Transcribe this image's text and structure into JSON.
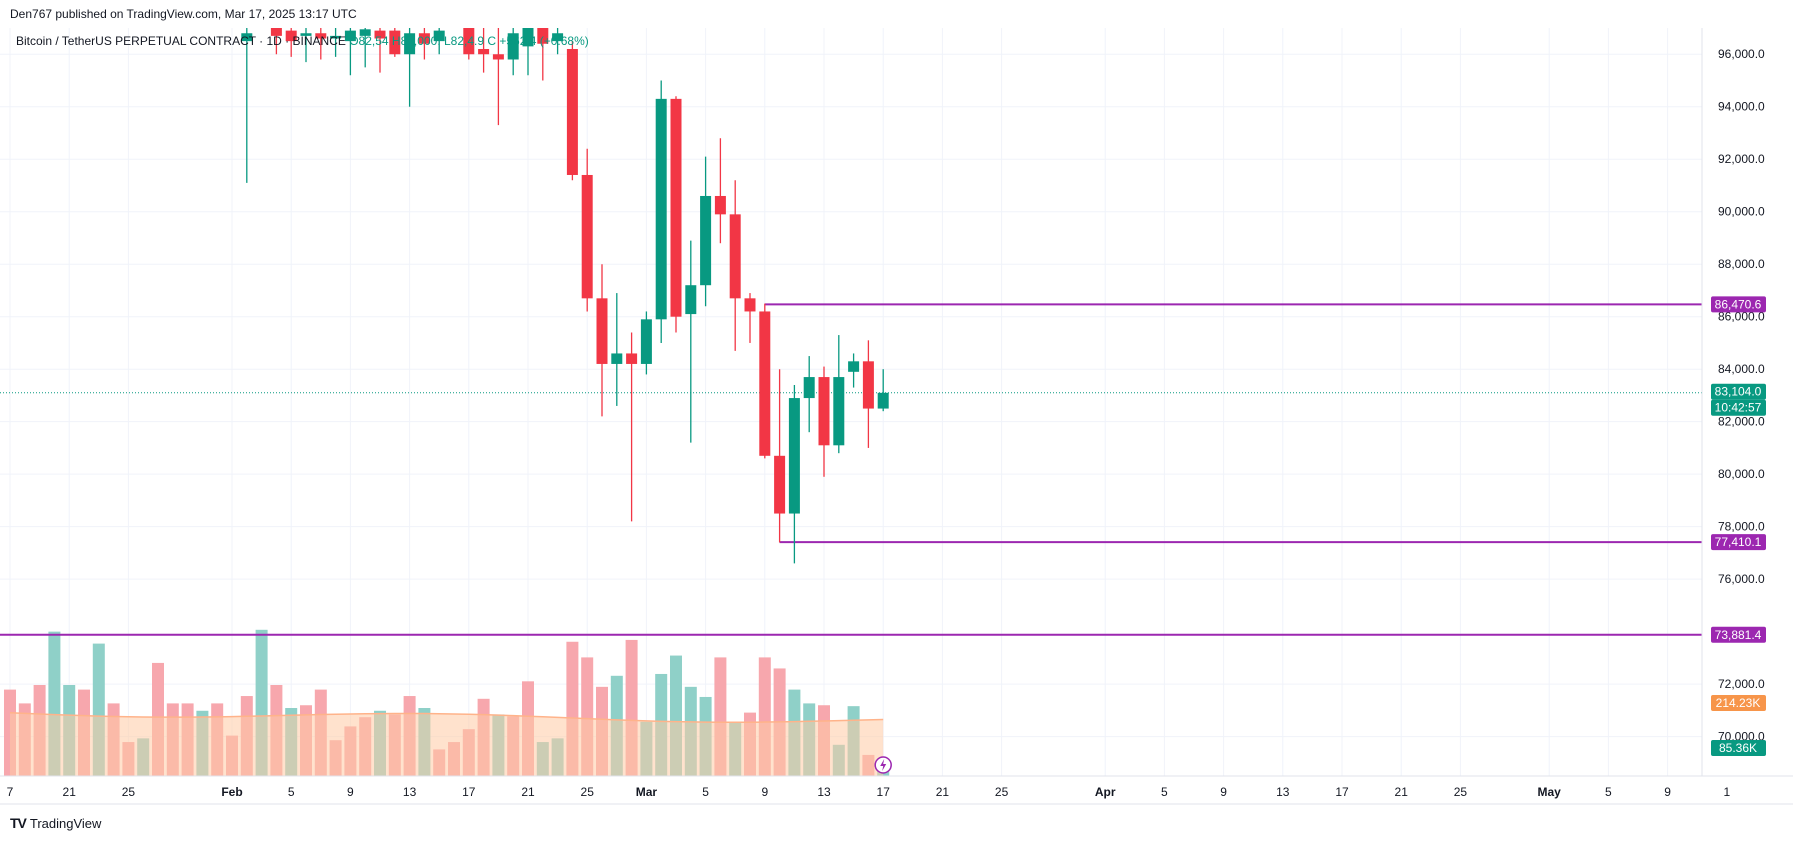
{
  "header": {
    "publish_line": "Den767 published on TradingView.com, Mar 17, 2025 13:17 UTC"
  },
  "legend": {
    "symbol": "Bitcoin / TetherUS PERPETUAL CONTRACT · 1D · BINANCE",
    "open": "O82,54",
    "high": "H84,000.",
    "low": "L82,4",
    ".9": ".9",
    "close": "C",
    "change": "+562.4 (+0.68%)"
  },
  "footer": {
    "logo": "TV",
    "brand": "TradingView"
  },
  "colors": {
    "up": "#089981",
    "down": "#f23645",
    "vol_up": "#8fd0c8",
    "vol_down": "#f7a7ad",
    "level": "#9c27b0",
    "ma_fill": "#ffcba4",
    "ma_line": "#ffb38a",
    "grid": "#f0f3fa"
  },
  "chart_data": {
    "type": "candlestick",
    "interval": "1D",
    "ylim": [
      68500,
      97000
    ],
    "y_ticks": [
      "96,000.0",
      "94,000.0",
      "92,000.0",
      "90,000.0",
      "88,000.0",
      "86,000.0",
      "84,000.0",
      "82,000.0",
      "80,000.0",
      "78,000.0",
      "76,000.0",
      "72,000.0",
      "70,000.0"
    ],
    "y_tick_values": [
      96000,
      94000,
      92000,
      90000,
      88000,
      86000,
      84000,
      82000,
      80000,
      78000,
      76000,
      72000,
      70000
    ],
    "x_ticks": [
      {
        "label": "7",
        "day": 0
      },
      {
        "label": "21",
        "day": 4
      },
      {
        "label": "25",
        "day": 8
      },
      {
        "label": "Feb",
        "day": 15,
        "bold": true
      },
      {
        "label": "5",
        "day": 19
      },
      {
        "label": "9",
        "day": 23
      },
      {
        "label": "13",
        "day": 27
      },
      {
        "label": "17",
        "day": 31
      },
      {
        "label": "21",
        "day": 35
      },
      {
        "label": "25",
        "day": 39
      },
      {
        "label": "Mar",
        "day": 43,
        "bold": true
      },
      {
        "label": "5",
        "day": 47
      },
      {
        "label": "9",
        "day": 51
      },
      {
        "label": "13",
        "day": 55
      },
      {
        "label": "17",
        "day": 59
      },
      {
        "label": "21",
        "day": 63
      },
      {
        "label": "25",
        "day": 67
      },
      {
        "label": "Apr",
        "day": 74,
        "bold": true
      },
      {
        "label": "5",
        "day": 78
      },
      {
        "label": "9",
        "day": 82
      },
      {
        "label": "13",
        "day": 86
      },
      {
        "label": "17",
        "day": 90
      },
      {
        "label": "21",
        "day": 94
      },
      {
        "label": "25",
        "day": 98
      },
      {
        "label": "May",
        "day": 104,
        "bold": true
      },
      {
        "label": "5",
        "day": 108
      },
      {
        "label": "9",
        "day": 112
      },
      {
        "label": "1",
        "day": 116
      }
    ],
    "candles": [
      {
        "day": 16,
        "o": 96500,
        "h": 97000,
        "l": 91100,
        "c": 96800
      },
      {
        "day": 18,
        "o": 97000,
        "h": 97000,
        "l": 96000,
        "c": 96700
      },
      {
        "day": 19,
        "o": 96900,
        "h": 97000,
        "l": 95900,
        "c": 96500
      },
      {
        "day": 20,
        "o": 96700,
        "h": 97000,
        "l": 95700,
        "c": 96800
      },
      {
        "day": 21,
        "o": 96800,
        "h": 97000,
        "l": 95800,
        "c": 96600
      },
      {
        "day": 22,
        "o": 96600,
        "h": 97000,
        "l": 95900,
        "c": 96700
      },
      {
        "day": 23,
        "o": 96500,
        "h": 97000,
        "l": 95200,
        "c": 96900
      },
      {
        "day": 24,
        "o": 96700,
        "h": 97000,
        "l": 95500,
        "c": 96950
      },
      {
        "day": 25,
        "o": 96900,
        "h": 97000,
        "l": 95300,
        "c": 96600
      },
      {
        "day": 26,
        "o": 96900,
        "h": 97000,
        "l": 95900,
        "c": 96000
      },
      {
        "day": 27,
        "o": 96000,
        "h": 97000,
        "l": 94000,
        "c": 96800
      },
      {
        "day": 28,
        "o": 96800,
        "h": 97000,
        "l": 95800,
        "c": 96400
      },
      {
        "day": 29,
        "o": 96500,
        "h": 97000,
        "l": 96000,
        "c": 96900
      },
      {
        "day": 31,
        "o": 97000,
        "h": 97000,
        "l": 95800,
        "c": 96000
      },
      {
        "day": 32,
        "o": 96200,
        "h": 97000,
        "l": 95300,
        "c": 96000
      },
      {
        "day": 33,
        "o": 96000,
        "h": 97000,
        "l": 93300,
        "c": 95800
      },
      {
        "day": 34,
        "o": 95800,
        "h": 97000,
        "l": 95200,
        "c": 96800
      },
      {
        "day": 35,
        "o": 96300,
        "h": 97000,
        "l": 95200,
        "c": 97000
      },
      {
        "day": 36,
        "o": 97000,
        "h": 97000,
        "l": 95000,
        "c": 96400
      },
      {
        "day": 37,
        "o": 96500,
        "h": 97000,
        "l": 96000,
        "c": 96800
      },
      {
        "day": 38,
        "o": 96200,
        "h": 96500,
        "l": 91200,
        "c": 91400
      },
      {
        "day": 39,
        "o": 91400,
        "h": 92400,
        "l": 86200,
        "c": 86700
      },
      {
        "day": 40,
        "o": 86700,
        "h": 88000,
        "l": 82200,
        "c": 84200
      },
      {
        "day": 41,
        "o": 84200,
        "h": 86900,
        "l": 82600,
        "c": 84600
      },
      {
        "day": 42,
        "o": 84600,
        "h": 85400,
        "l": 78200,
        "c": 84200
      },
      {
        "day": 43,
        "o": 84200,
        "h": 86200,
        "l": 83800,
        "c": 85900
      },
      {
        "day": 44,
        "o": 85900,
        "h": 95000,
        "l": 85000,
        "c": 94300
      },
      {
        "day": 45,
        "o": 94300,
        "h": 94400,
        "l": 85400,
        "c": 86000
      },
      {
        "day": 46,
        "o": 86100,
        "h": 88900,
        "l": 81200,
        "c": 87200
      },
      {
        "day": 47,
        "o": 87200,
        "h": 92100,
        "l": 86400,
        "c": 90600
      },
      {
        "day": 48,
        "o": 90600,
        "h": 92800,
        "l": 88800,
        "c": 89900
      },
      {
        "day": 49,
        "o": 89900,
        "h": 91200,
        "l": 84700,
        "c": 86700
      },
      {
        "day": 50,
        "o": 86700,
        "h": 86900,
        "l": 85000,
        "c": 86200
      },
      {
        "day": 51,
        "o": 86200,
        "h": 86500,
        "l": 80600,
        "c": 80700
      },
      {
        "day": 52,
        "o": 80700,
        "h": 84000,
        "l": 77400,
        "c": 78500
      },
      {
        "day": 53,
        "o": 78500,
        "h": 83400,
        "l": 76600,
        "c": 82900
      },
      {
        "day": 54,
        "o": 82900,
        "h": 84500,
        "l": 81600,
        "c": 83700
      },
      {
        "day": 55,
        "o": 83700,
        "h": 84100,
        "l": 79900,
        "c": 81100
      },
      {
        "day": 56,
        "o": 81100,
        "h": 85300,
        "l": 80800,
        "c": 83700
      },
      {
        "day": 57,
        "o": 83900,
        "h": 84600,
        "l": 83300,
        "c": 84300
      },
      {
        "day": 58,
        "o": 84300,
        "h": 85100,
        "l": 81000,
        "c": 82500
      },
      {
        "day": 59,
        "o": 82500,
        "h": 84000,
        "l": 82400,
        "c": 83100
      }
    ],
    "volume": {
      "values": [
        [
          0,
          0.95
        ],
        [
          1,
          0.8
        ],
        [
          2,
          1.0
        ],
        [
          3,
          1.58
        ],
        [
          4,
          1.0
        ],
        [
          5,
          0.95
        ],
        [
          6,
          1.45
        ],
        [
          7,
          0.8
        ],
        [
          8,
          0.38
        ],
        [
          9,
          0.42
        ],
        [
          10,
          1.24
        ],
        [
          11,
          0.8
        ],
        [
          12,
          0.8
        ],
        [
          13,
          0.72
        ],
        [
          14,
          0.8
        ],
        [
          15,
          0.45
        ],
        [
          16,
          0.88
        ],
        [
          17,
          1.6
        ],
        [
          18,
          1.0
        ],
        [
          19,
          0.75
        ],
        [
          20,
          0.78
        ],
        [
          21,
          0.95
        ],
        [
          22,
          0.4
        ],
        [
          23,
          0.55
        ],
        [
          24,
          0.65
        ],
        [
          25,
          0.72
        ],
        [
          26,
          0.68
        ],
        [
          27,
          0.88
        ],
        [
          28,
          0.75
        ],
        [
          29,
          0.3
        ],
        [
          30,
          0.38
        ],
        [
          31,
          0.52
        ],
        [
          32,
          0.85
        ],
        [
          33,
          0.68
        ],
        [
          34,
          0.66
        ],
        [
          35,
          1.04
        ],
        [
          36,
          0.38
        ],
        [
          37,
          0.42
        ],
        [
          38,
          1.47
        ],
        [
          39,
          1.3
        ],
        [
          40,
          0.98
        ],
        [
          41,
          1.1
        ],
        [
          42,
          1.49
        ],
        [
          43,
          0.6
        ],
        [
          44,
          1.12
        ],
        [
          45,
          1.32
        ],
        [
          46,
          0.98
        ],
        [
          47,
          0.87
        ],
        [
          48,
          1.3
        ],
        [
          49,
          0.6
        ],
        [
          50,
          0.7
        ],
        [
          51,
          1.3
        ],
        [
          52,
          1.18
        ],
        [
          53,
          0.95
        ],
        [
          54,
          0.8
        ],
        [
          55,
          0.78
        ],
        [
          56,
          0.35
        ],
        [
          57,
          0.77
        ],
        [
          58,
          0.24
        ],
        [
          59,
          0.1
        ]
      ],
      "up_days": [
        3,
        4,
        6,
        9,
        13,
        17,
        19,
        25,
        28,
        33,
        36,
        37,
        41,
        43,
        44,
        45,
        46,
        47,
        49,
        53,
        54,
        56,
        57,
        59
      ],
      "ma_level": 0.97
    },
    "levels": [
      {
        "value": 86470.6,
        "label": "86,470.6",
        "from_day": 51
      },
      {
        "value": 77410.1,
        "label": "77,410.1",
        "from_day": 52
      },
      {
        "value": 73881.4,
        "label": "73,881.4",
        "from_day": -1
      }
    ],
    "last_price": {
      "value": 83104.0,
      "label": "83,104.0",
      "countdown": "10:42:57"
    },
    "vol_ma_label": "214.23K",
    "vol_label": "85.36K"
  }
}
